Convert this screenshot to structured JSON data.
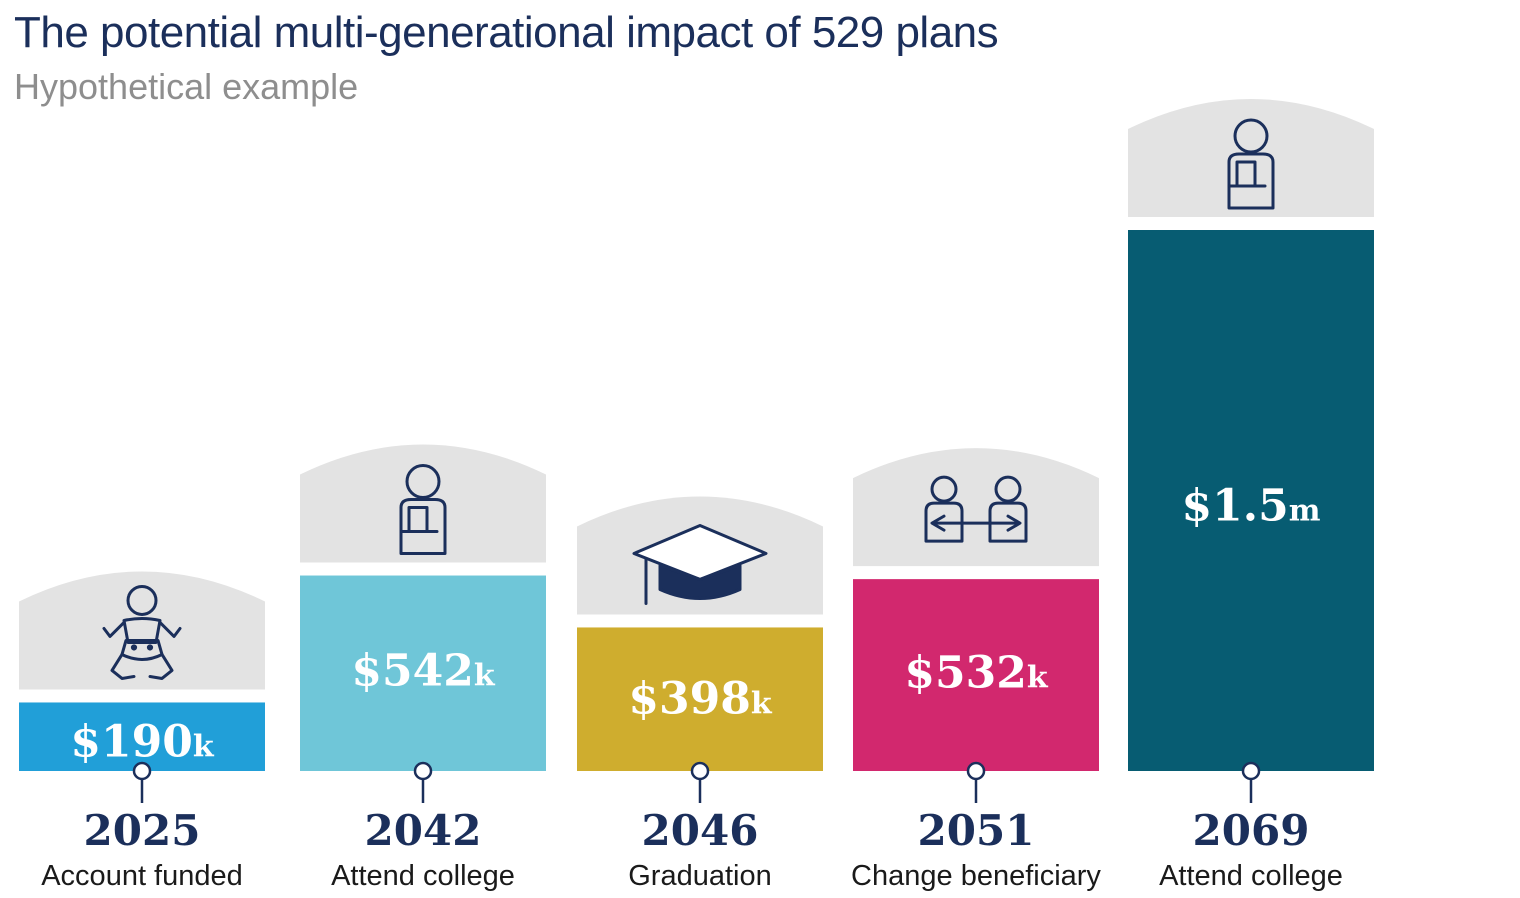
{
  "title": "The potential multi-generational impact of 529 plans",
  "subtitle": "Hypothetical example",
  "chart_data": {
    "type": "bar",
    "title": "The potential multi-generational impact of 529 plans",
    "subtitle": "Hypothetical example",
    "categories": [
      "2025",
      "2042",
      "2046",
      "2051",
      "2069"
    ],
    "descriptions": [
      "Account funded",
      "Attend college",
      "Graduation",
      "Change beneficiary",
      "Attend college"
    ],
    "values": [
      190,
      542,
      398,
      532,
      1500
    ],
    "value_unit": "thousands of dollars",
    "labels": [
      {
        "amount": "$190",
        "unit": "k"
      },
      {
        "amount": "$542",
        "unit": "k"
      },
      {
        "amount": "$398",
        "unit": "k"
      },
      {
        "amount": "$532",
        "unit": "k"
      },
      {
        "amount": "$1.5",
        "unit": "m"
      }
    ],
    "colors": [
      "#219fd8",
      "#6fc6d8",
      "#cfad2e",
      "#d2286e",
      "#075c72"
    ],
    "icons": [
      "baby-icon",
      "student-icon",
      "graduation-cap-icon",
      "change-beneficiary-icon",
      "student-icon"
    ],
    "icon_cap_color": "#e3e3e3",
    "text_color": "#1b2f5b"
  }
}
